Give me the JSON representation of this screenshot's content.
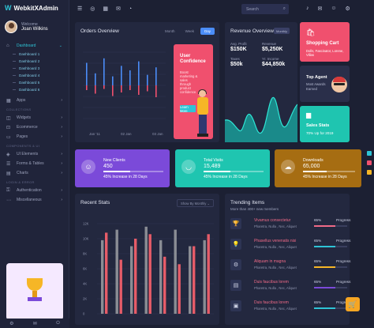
{
  "app": {
    "name": "WebkitXAdmin"
  },
  "user": {
    "greeting": "Welcome",
    "name": "Joan Wilkins"
  },
  "sidebar": {
    "dashboard": "Dashboard",
    "subs": [
      "Dashboard 1",
      "Dashboard 2",
      "Dashboard 3",
      "Dashboard 4",
      "Dashboard 5",
      "Dashboard 6"
    ],
    "apps": "Apps",
    "section_collections": "COLLECTIONS",
    "widgets": "Widgets",
    "ecommerce": "Ecommerce",
    "pages": "Pages",
    "section_components": "COMPONENTS & UI",
    "ui_elements": "UI Elements",
    "forms": "Forms & Tables",
    "charts": "Charts",
    "section_login": "LOGIN & ERROR",
    "authentication": "Authentication",
    "misc": "Miscellaneous"
  },
  "search": {
    "placeholder": "Search"
  },
  "orders": {
    "title": "Orders Overview",
    "tabs": [
      "Month",
      "Week",
      "Day"
    ],
    "active_tab": "Day",
    "x_labels": [
      "Jan '11",
      "02 Jan",
      "03 Jan"
    ],
    "bars": [
      {
        "up": 0.75,
        "down": 0.2
      },
      {
        "up": 0.4,
        "down": 0.35
      },
      {
        "up": 0.9,
        "down": 0.15
      },
      {
        "up": 0.3,
        "down": 0.45
      },
      {
        "up": 0.65,
        "down": 0.3
      },
      {
        "up": 0.5,
        "down": 0.2
      },
      {
        "up": 0.8,
        "down": 0.4
      },
      {
        "up": 0.35,
        "down": 0.25
      },
      {
        "up": 0.6,
        "down": 0.5
      }
    ]
  },
  "confidence": {
    "title": "User Confidence",
    "text": "Boost marketing & sales through product confidence.",
    "button": "Learn More"
  },
  "revenue": {
    "title": "Revenue Overview",
    "badge": "Monthly",
    "stats": [
      {
        "label": "Avg. Profit",
        "value": "$150K"
      },
      {
        "label": "Revenue",
        "value": "$5,250K"
      },
      {
        "label": "Taxes",
        "value": "$50k"
      },
      {
        "label": "Yr. Income",
        "value": "$44,850k"
      }
    ]
  },
  "shopping": {
    "title": "Shopping Cart",
    "sub": "Dolls, Fascinator, Lorene, Villas",
    "color": "#f0506e"
  },
  "agent": {
    "title": "Top Agent",
    "sub": "Most Awards Earned"
  },
  "sales": {
    "title": "Sales Stats",
    "sub": "70% Up for 2019",
    "color": "#2ec4b6"
  },
  "stats": [
    {
      "name": "New Clients",
      "value": "450",
      "increase": "45% Increase in 28 Days",
      "color": "#7b4ad9",
      "progress": 0.45,
      "icon": "user-icon"
    },
    {
      "name": "Total Visits",
      "value": "15,489",
      "increase": "45% Increase in 28 Days",
      "color": "#1fc5b0",
      "progress": 0.45,
      "icon": "smile-icon"
    },
    {
      "name": "Downloads",
      "value": "65,000",
      "increase": "45% Increase in 28 Days",
      "color": "#a66d12",
      "progress": 0.45,
      "icon": "cloud-icon"
    }
  ],
  "recent": {
    "title": "Recent Stats",
    "dropdown": "Show By Monthly",
    "y_ticks": [
      "0",
      "2K",
      "4K",
      "6K",
      "8K",
      "10K",
      "12K"
    ],
    "bars": [
      {
        "gray": 9.8,
        "red": 10.8
      },
      {
        "gray": 11.2,
        "red": 7.2
      },
      {
        "gray": 9.0,
        "red": 10.0
      },
      {
        "gray": 11.6,
        "red": 10.6
      },
      {
        "gray": 9.8,
        "red": 7.6
      },
      {
        "gray": 11.2,
        "red": 6.6
      },
      {
        "gray": 9.0,
        "red": 9.0
      },
      {
        "gray": 9.8,
        "red": 10.6
      }
    ]
  },
  "trending": {
    "title": "Trending Items",
    "sub": "More than 400+ new members",
    "progress_label": "Progress",
    "items": [
      {
        "title": "Vivamus consectetur",
        "authors": "Pharetra, Nulla , Nec, Aliquet",
        "pct": "65%",
        "p": 0.65,
        "color": "#f06a87",
        "icon": "trophy-icon"
      },
      {
        "title": "Phasellus venenatis nisi",
        "authors": "Pharetra, Nulla , Nec, Aliquet",
        "pct": "65%",
        "p": 0.65,
        "color": "#2ec4d6",
        "icon": "bulb-icon"
      },
      {
        "title": "Aliquam in magna",
        "authors": "Pharetra, Nulla , Nec, Aliquet",
        "pct": "65%",
        "p": 0.65,
        "color": "#f6b626",
        "icon": "gear-icon"
      },
      {
        "title": "Duis faucibus lorem",
        "authors": "Pharetra, Nulla , Nec, Aliquet",
        "pct": "65%",
        "p": 0.65,
        "color": "#7b4ad9",
        "icon": "bars-icon"
      },
      {
        "title": "Duis faucibus lorem",
        "authors": "Pharetra, Nulla , Nec, Aliquet",
        "pct": "65%",
        "p": 0.65,
        "color": "#2ec4d6",
        "icon": "box-icon"
      }
    ]
  }
}
